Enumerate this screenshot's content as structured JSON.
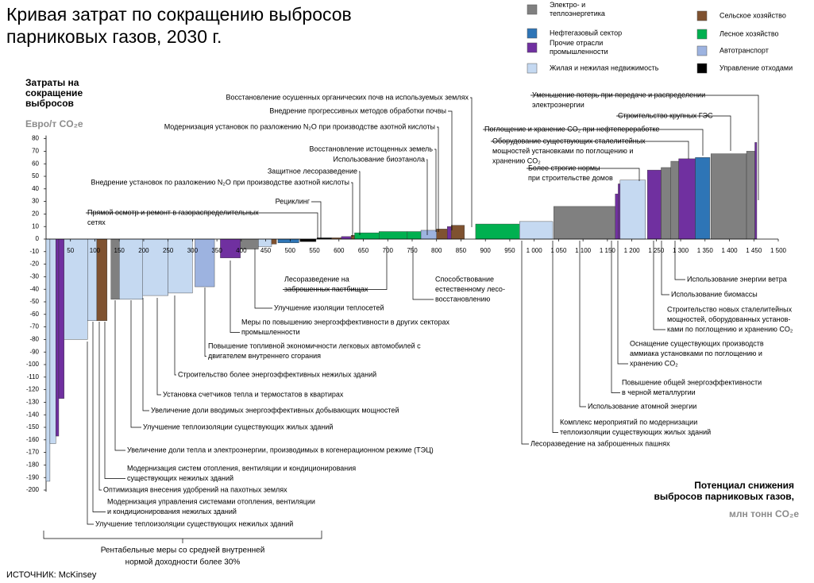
{
  "chart_data": {
    "type": "macc",
    "title": [
      "Кривая затрат по сокращению выбросов",
      "парниковых газов, 2030 г."
    ],
    "y_label": [
      "Затраты на",
      "сокращение",
      "выбросов"
    ],
    "y_unit": "Евро/т CO₂e",
    "x_label": [
      "Потенциал снижения",
      "выбросов парниковых газов,"
    ],
    "x_unit": "млн тонн CO₂e",
    "source": "ИСТОЧНИК: McKinsey",
    "bracket_note": [
      "Рентабельные меры со средней внутренней",
      "нормой доходности более 30%"
    ],
    "sectors": [
      {
        "name": [
          "Электро- и",
          "теплоэнергетика"
        ],
        "color": "#808080"
      },
      {
        "name": [
          "Нефтегазовый сектор"
        ],
        "color": "#2e75b6"
      },
      {
        "name": [
          "Прочие отрасли",
          "промышленности"
        ],
        "color": "#7030a0"
      },
      {
        "name": [
          "Жилая и нежилая недвижимость"
        ],
        "color": "#c5d9f1"
      },
      {
        "name": [
          "Сельское хозяйство"
        ],
        "color": "#7f5230"
      },
      {
        "name": [
          "Лесное хозяйство"
        ],
        "color": "#00b050"
      },
      {
        "name": [
          "Автотранспорт"
        ],
        "color": "#9db3e0"
      },
      {
        "name": [
          "Управление отходами"
        ],
        "color": "#000000"
      }
    ],
    "bars": [
      {
        "x": [
          0,
          8
        ],
        "value": -193,
        "sector": 3
      },
      {
        "x": [
          8,
          20
        ],
        "value": -163,
        "sector": 3
      },
      {
        "x": [
          20,
          26
        ],
        "value": -157,
        "sector": 2
      },
      {
        "x": [
          26,
          37
        ],
        "value": -127,
        "sector": 2
      },
      {
        "x": [
          37,
          85
        ],
        "value": -80,
        "sector": 3
      },
      {
        "x": [
          85,
          104
        ],
        "value": -65,
        "sector": 3
      },
      {
        "x": [
          104,
          125
        ],
        "value": -65,
        "sector": 4
      },
      {
        "x": [
          133,
          150
        ],
        "value": -48,
        "sector": 0
      },
      {
        "x": [
          150,
          198
        ],
        "value": -48,
        "sector": 3
      },
      {
        "x": [
          198,
          250
        ],
        "value": -45,
        "sector": 3
      },
      {
        "x": [
          250,
          300
        ],
        "value": -43,
        "sector": 3
      },
      {
        "x": [
          305,
          345
        ],
        "value": -38,
        "sector": 6
      },
      {
        "x": [
          357,
          398
        ],
        "value": -15,
        "sector": 2
      },
      {
        "x": [
          398,
          435
        ],
        "value": -8,
        "sector": 0
      },
      {
        "x": [
          435,
          462
        ],
        "value": -6,
        "sector": 3
      },
      {
        "x": [
          462,
          472
        ],
        "value": -4,
        "sector": 4
      },
      {
        "x": [
          475,
          518
        ],
        "value": -3,
        "sector": 1
      },
      {
        "x": [
          520,
          553
        ],
        "value": -2,
        "sector": 7
      },
      {
        "x": [
          555,
          585
        ],
        "value": 1,
        "sector": 7
      },
      {
        "x": [
          585,
          605
        ],
        "value": 1,
        "sector": 4
      },
      {
        "x": [
          605,
          625
        ],
        "value": 2,
        "sector": 2
      },
      {
        "x": [
          625,
          632
        ],
        "value": 3,
        "sector": 4
      },
      {
        "x": [
          632,
          682
        ],
        "value": 5,
        "sector": 5
      },
      {
        "x": [
          682,
          740
        ],
        "value": 6,
        "sector": 5
      },
      {
        "x": [
          740,
          768
        ],
        "value": 6,
        "sector": 5
      },
      {
        "x": [
          768,
          800
        ],
        "value": 7,
        "sector": 6
      },
      {
        "x": [
          800,
          822
        ],
        "value": 8,
        "sector": 4
      },
      {
        "x": [
          822,
          830
        ],
        "value": 10,
        "sector": 2
      },
      {
        "x": [
          830,
          857
        ],
        "value": 11,
        "sector": 4
      },
      {
        "x": [
          880,
          970
        ],
        "value": 12,
        "sector": 5
      },
      {
        "x": [
          970,
          1038
        ],
        "value": 14,
        "sector": 3
      },
      {
        "x": [
          1040,
          1166
        ],
        "value": 26,
        "sector": 0
      },
      {
        "x": [
          1166,
          1172
        ],
        "value": 36,
        "sector": 2
      },
      {
        "x": [
          1172,
          1176
        ],
        "value": 44,
        "sector": 2
      },
      {
        "x": [
          1176,
          1228
        ],
        "value": 47,
        "sector": 3
      },
      {
        "x": [
          1232,
          1260
        ],
        "value": 55,
        "sector": 2
      },
      {
        "x": [
          1260,
          1280
        ],
        "value": 57,
        "sector": 0
      },
      {
        "x": [
          1280,
          1296
        ],
        "value": 62,
        "sector": 0
      },
      {
        "x": [
          1296,
          1330
        ],
        "value": 64,
        "sector": 2
      },
      {
        "x": [
          1330,
          1360
        ],
        "value": 65,
        "sector": 1
      },
      {
        "x": [
          1362,
          1435
        ],
        "value": 68,
        "sector": 0
      },
      {
        "x": [
          1435,
          1452
        ],
        "value": 70,
        "sector": 0
      },
      {
        "x": [
          1452,
          1456
        ],
        "value": 77,
        "sector": 2
      }
    ],
    "xlim": [
      0,
      1500
    ],
    "ylim": [
      -200,
      80
    ],
    "xticks": [
      50,
      100,
      150,
      200,
      250,
      300,
      350,
      400,
      450,
      500,
      550,
      600,
      650,
      700,
      750,
      800,
      850,
      900,
      950,
      {
        "value": 1000,
        "label": "1 000"
      },
      {
        "value": 1050,
        "label": "1 050"
      },
      {
        "value": 1100,
        "label": "1 100"
      },
      {
        "value": 1150,
        "label": "1 150"
      },
      {
        "value": 1200,
        "label": "1 200"
      },
      {
        "value": 1250,
        "label": "1 250"
      },
      {
        "value": 1300,
        "label": "1 300"
      },
      {
        "value": 1350,
        "label": "1 350"
      },
      {
        "value": 1400,
        "label": "1 400"
      },
      {
        "value": 1450,
        "label": "1 450"
      },
      {
        "value": 1500,
        "label": "1 500"
      }
    ],
    "yticks": [
      80,
      70,
      60,
      50,
      40,
      30,
      20,
      10,
      0,
      -10,
      -20,
      -30,
      -40,
      -50,
      -60,
      -70,
      -80,
      -90,
      -100,
      -110,
      -120,
      -130,
      -140,
      -150,
      -160,
      -170,
      -180,
      -190,
      -200
    ],
    "annotations": [
      [
        "Восстановление осушенных органических почв на используемых землях"
      ],
      [
        "Внедрение прогрессивных методов обработки почвы"
      ],
      [
        "Модернизация установок по разложению N₂O при производстве азотной кислоты"
      ],
      [
        "Восстановление  истощенных земель"
      ],
      [
        "Использование биоэтанола"
      ],
      [
        "Защитное лесоразведение"
      ],
      [
        "Внедрение установок по разложению N₂O при производстве азотной кислоты"
      ],
      [
        "Рециклинг"
      ],
      [
        "Прямой осмотр и ремонт в газораспределительных",
        "сетях"
      ],
      [
        "Уменьшение потерь при передаче и распределении",
        "электроэнергии"
      ],
      [
        "Строительство крупных ГЭС"
      ],
      [
        "Поглощение и хранение CO₂ при нефтепереработке"
      ],
      [
        "Оборудование существующих сталелитейных",
        "мощностей установками по поглощению и",
        "хранению CO₂"
      ],
      [
        "Более строгие нормы",
        "при строительстве домов"
      ],
      [
        "Лесоразведение на",
        "заброшенных пастбищах"
      ],
      [
        "Способствование",
        "естественному лесо-",
        "восстановлению"
      ],
      [
        "Улучшение изоляции теплосетей"
      ],
      [
        "Меры по повышению энергоэффективности в других секторах",
        "промышленности"
      ],
      [
        "Повышение топливной экономичности легковых автомобилей с",
        "двигателем внутреннего сгорания"
      ],
      [
        "Строительство более энергоэффективных нежилых зданий"
      ],
      [
        "Установка счетчиков тепла и термостатов в квартирах"
      ],
      [
        "Увеличение доли вводимых энергоэффективных добывающих мощностей"
      ],
      [
        "Улучшение теплоизоляции существующих жилых зданий"
      ],
      [
        "Увеличение доли тепла и электроэнергии, производимых в когенерационном режиме (ТЭЦ)"
      ],
      [
        "Модернизация систем отопления, вентиляции и кондиционирования",
        "существующих нежилых зданий"
      ],
      [
        "Оптимизация внесения удобрений на пахотных землях"
      ],
      [
        "Модернизация управления системами отопления, вентиляции",
        "и кондиционирования нежилых зданий"
      ],
      [
        "Улучшение теплоизоляции существующих нежилых зданий"
      ],
      [
        "Использование энергии ветра"
      ],
      [
        "Использование биомассы"
      ],
      [
        "Строительство новых сталелитейных",
        "мощностей, оборудованных установ-",
        "ками по поглощению и хранению CO₂"
      ],
      [
        "Оснащение существующих производств",
        "аммиака установками по поглощению и",
        "хранению CO₂"
      ],
      [
        "Повышение общей энергоэффективности",
        "в черной металлургии"
      ],
      [
        "Использование атомной энергии"
      ],
      [
        "Комплекс мероприятий по модернизации",
        "теплоизоляции существующих жилых зданий"
      ],
      [
        "Лесоразведение на заброшенных пашнях"
      ]
    ]
  }
}
